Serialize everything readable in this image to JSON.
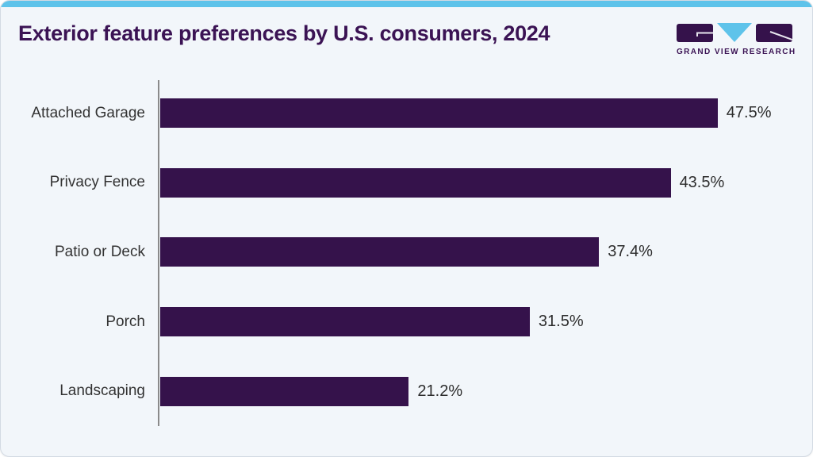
{
  "header": {
    "title": "Exterior feature preferences by U.S. consumers, 2024",
    "logo_text": "GRAND VIEW RESEARCH"
  },
  "colors": {
    "accent": "#5ec3ea",
    "bar": "#35124b",
    "title": "#3b1354",
    "background": "#f2f6fa",
    "axis": "#8a8a8a",
    "category_label": "#333333",
    "value_label": "#2d2d2d"
  },
  "chart_data": {
    "type": "bar",
    "orientation": "horizontal",
    "title": "Exterior feature preferences by U.S. consumers, 2024",
    "categories": [
      "Attached Garage",
      "Privacy Fence",
      "Patio or Deck",
      "Porch",
      "Landscaping"
    ],
    "values": [
      47.5,
      43.5,
      37.4,
      31.5,
      21.2
    ],
    "value_labels": [
      "47.5%",
      "43.5%",
      "37.4%",
      "31.5%",
      "21.2%"
    ],
    "unit": "%",
    "xlabel": "",
    "ylabel": "",
    "xlim": [
      0,
      54.2
    ],
    "grid": false,
    "legend": false,
    "bar_color": "#35124b"
  }
}
